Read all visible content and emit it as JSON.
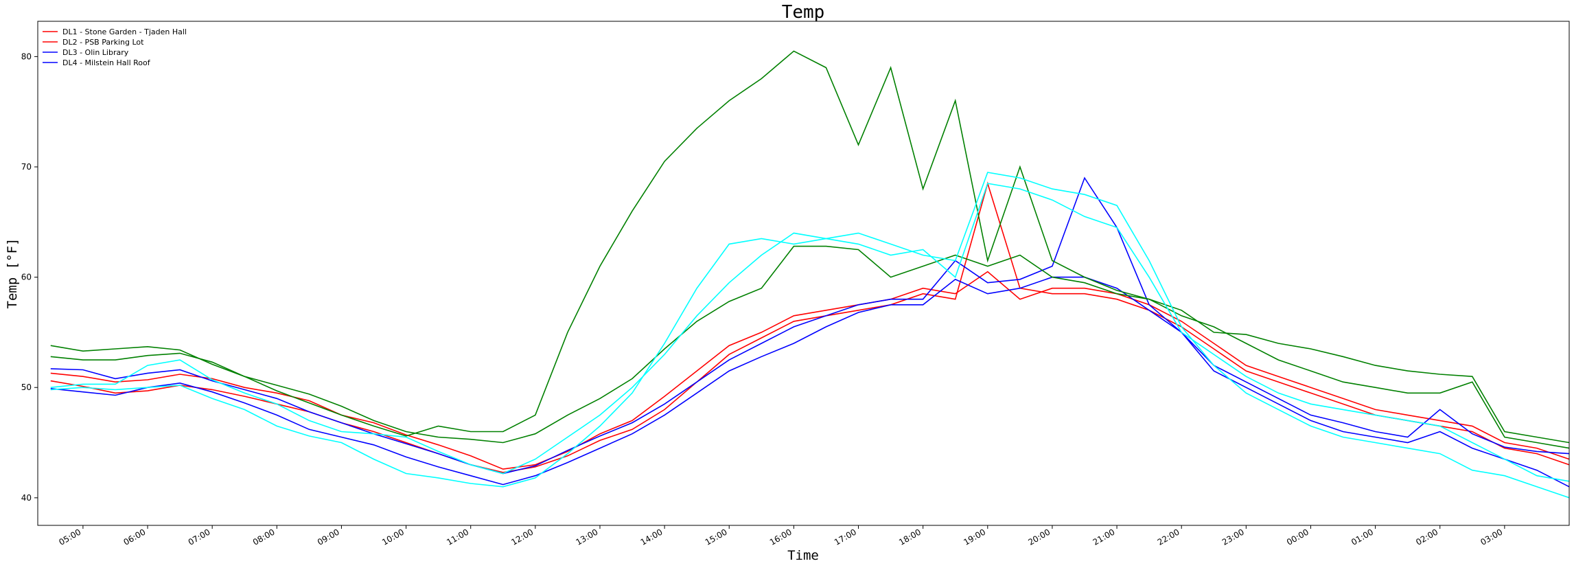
{
  "chart_data": {
    "type": "line",
    "title": "Temp",
    "xlabel": "Time",
    "ylabel": "Temp [°F]",
    "x_tick_labels": [
      "05:00",
      "06:00",
      "07:00",
      "08:00",
      "09:00",
      "10:00",
      "11:00",
      "12:00",
      "13:00",
      "14:00",
      "15:00",
      "16:00",
      "17:00",
      "18:00",
      "19:00",
      "20:00",
      "21:00",
      "22:00",
      "23:00",
      "00:00",
      "01:00",
      "02:00",
      "03:00"
    ],
    "y_ticks": [
      40,
      50,
      60,
      70,
      80
    ],
    "x_range_hours": [
      4.3,
      28.0
    ],
    "ylim": [
      37.5,
      83.2
    ],
    "grid": false,
    "legend_placement": "top-left",
    "legend": [
      {
        "label": "DL1 - Stone Garden - Tjaden Hall",
        "color": "#ff0000"
      },
      {
        "label": "DL2 - PSB Parking Lot",
        "color": "#ff0000"
      },
      {
        "label": "DL3 - Olin Library",
        "color": "#0000ff"
      },
      {
        "label": "DL4 - Milstein Hall Roof",
        "color": "#0000ff"
      }
    ],
    "x_hours": [
      4.5,
      5,
      5.5,
      6,
      6.5,
      7,
      7.5,
      8,
      8.5,
      9,
      9.5,
      10,
      10.5,
      11,
      11.5,
      12,
      12.5,
      13,
      13.5,
      14,
      14.5,
      15,
      15.5,
      16,
      16.5,
      17,
      17.5,
      18,
      18.5,
      19,
      19.5,
      20,
      20.5,
      21,
      21.5,
      22,
      22.5,
      23,
      23.5,
      24,
      24.5,
      25,
      25.5,
      26,
      26.5,
      27,
      27.5,
      28
    ],
    "series": [
      {
        "color": "#ff0000",
        "values": [
          51.3,
          51.0,
          50.5,
          50.7,
          51.2,
          50.8,
          50.0,
          49.5,
          48.8,
          47.5,
          46.8,
          45.7,
          44.8,
          43.8,
          42.6,
          43.0,
          44.2,
          45.8,
          47.0,
          49.2,
          51.5,
          53.8,
          55.0,
          56.5,
          57.0,
          57.5,
          58.0,
          59.0,
          58.5,
          60.5,
          58.0,
          59.0,
          59.0,
          58.5,
          57.5,
          56.0,
          54.0,
          52.0,
          51.0,
          50.0,
          49.0,
          48.0,
          47.5,
          47.0,
          46.5,
          45.0,
          44.5,
          43.5
        ]
      },
      {
        "color": "#ff0000",
        "values": [
          50.6,
          50.1,
          49.5,
          49.7,
          50.2,
          49.8,
          49.2,
          48.5,
          47.8,
          46.8,
          46.0,
          45.0,
          44.0,
          43.0,
          42.3,
          42.8,
          43.8,
          45.2,
          46.2,
          48.0,
          50.5,
          53.0,
          54.5,
          56.0,
          56.5,
          57.0,
          57.5,
          58.5,
          58.0,
          68.5,
          59.0,
          58.5,
          58.5,
          58.0,
          57.0,
          55.5,
          53.5,
          51.5,
          50.5,
          49.5,
          48.5,
          47.5,
          47.0,
          46.5,
          46.0,
          44.5,
          44.0,
          43.0
        ]
      },
      {
        "color": "#0000ff",
        "values": [
          51.7,
          51.6,
          50.8,
          51.3,
          51.6,
          50.6,
          49.8,
          49.0,
          47.8,
          46.8,
          45.8,
          44.9,
          44.0,
          43.0,
          42.2,
          42.9,
          44.3,
          45.6,
          46.8,
          48.5,
          50.5,
          52.5,
          54.0,
          55.5,
          56.5,
          57.5,
          58.0,
          58.0,
          61.5,
          59.5,
          59.8,
          61.0,
          69.0,
          64.5,
          57.5,
          55.0,
          52.0,
          50.5,
          49.0,
          47.5,
          46.8,
          46.0,
          45.5,
          48.0,
          45.8,
          44.6,
          44.2,
          44.0
        ]
      },
      {
        "color": "#0000ff",
        "values": [
          49.9,
          49.6,
          49.3,
          50.0,
          50.4,
          49.6,
          48.6,
          47.5,
          46.2,
          45.5,
          44.8,
          43.7,
          42.8,
          42.0,
          41.2,
          42.0,
          43.2,
          44.5,
          45.8,
          47.5,
          49.5,
          51.5,
          52.8,
          54.0,
          55.5,
          56.8,
          57.5,
          57.5,
          59.8,
          58.5,
          59.0,
          60.0,
          60.0,
          59.0,
          57.0,
          55.0,
          51.5,
          50.0,
          48.5,
          47.0,
          46.0,
          45.5,
          45.0,
          46.0,
          44.5,
          43.5,
          42.5,
          41.0
        ]
      },
      {
        "color": "#008000",
        "values": [
          53.8,
          53.3,
          53.5,
          53.7,
          53.4,
          52.1,
          51.0,
          50.2,
          49.4,
          48.3,
          47.0,
          46.0,
          45.5,
          45.3,
          45.0,
          45.8,
          47.5,
          49.0,
          50.8,
          53.5,
          56.0,
          57.8,
          59.0,
          62.8,
          62.8,
          62.5,
          60.0,
          61.0,
          62.0,
          61.0,
          62.0,
          60.0,
          59.5,
          58.5,
          58.0,
          57.0,
          55.0,
          54.8,
          54.0,
          53.5,
          52.8,
          52.0,
          51.5,
          51.2,
          51.0,
          46.0,
          45.5,
          45.0
        ]
      },
      {
        "color": "#008000",
        "values": [
          52.8,
          52.5,
          52.5,
          52.9,
          53.1,
          52.3,
          51.0,
          49.7,
          48.6,
          47.5,
          46.5,
          45.6,
          46.5,
          46.0,
          46.0,
          47.5,
          55.0,
          61.0,
          66.0,
          70.5,
          73.5,
          76.0,
          78.0,
          80.5,
          79.0,
          72.0,
          79.0,
          68.0,
          76.0,
          61.5,
          70.0,
          61.5,
          60.0,
          58.8,
          58.0,
          56.5,
          55.5,
          54.0,
          52.5,
          51.5,
          50.5,
          50.0,
          49.5,
          49.5,
          50.5,
          45.5,
          45.0,
          44.5
        ]
      },
      {
        "color": "#00ffff",
        "values": [
          50.0,
          50.3,
          50.3,
          52.0,
          52.5,
          50.7,
          49.5,
          48.5,
          47.0,
          46.0,
          45.8,
          45.5,
          44.2,
          43.0,
          42.2,
          43.5,
          45.5,
          47.5,
          50.0,
          53.0,
          56.5,
          59.5,
          62.0,
          64.0,
          63.5,
          63.0,
          62.0,
          62.5,
          60.0,
          68.5,
          68.0,
          67.0,
          65.5,
          64.5,
          60.0,
          55.0,
          53.0,
          51.0,
          49.5,
          48.5,
          48.0,
          47.5,
          47.0,
          46.5,
          45.0,
          43.5,
          42.0,
          41.5
        ]
      },
      {
        "color": "#00ffff",
        "values": [
          49.8,
          50.0,
          49.8,
          50.0,
          50.2,
          49.0,
          48.0,
          46.5,
          45.6,
          45.0,
          43.5,
          42.2,
          41.8,
          41.3,
          41.0,
          41.8,
          44.0,
          46.5,
          49.5,
          54.0,
          59.0,
          63.0,
          63.5,
          63.0,
          63.5,
          64.0,
          63.0,
          62.0,
          61.5,
          69.5,
          69.0,
          68.0,
          67.5,
          66.5,
          61.5,
          55.5,
          52.0,
          49.5,
          48.0,
          46.5,
          45.5,
          45.0,
          44.5,
          44.0,
          42.5,
          42.0,
          41.0,
          40.0
        ]
      }
    ]
  }
}
